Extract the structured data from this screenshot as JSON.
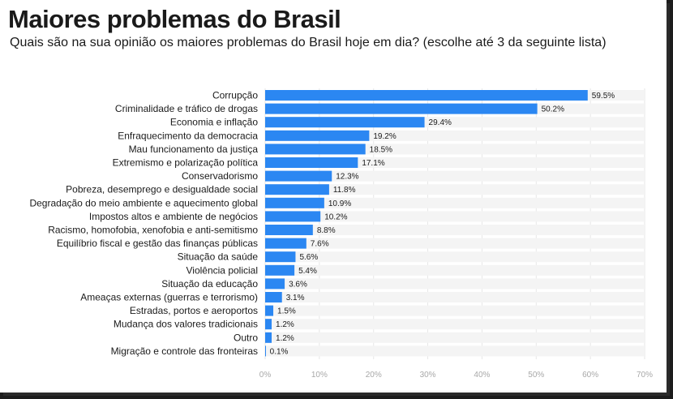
{
  "title": "Maiores problemas do Brasil",
  "subtitle": "Quais são na sua opinião os maiores problemas do Brasil hoje em dia? (escolhe até 3 da seguinte lista)",
  "colors": {
    "bar": "#2b87f2",
    "track": "#f4f4f4",
    "grid": "#e6e6e6",
    "axis_text": "#a8a8a8"
  },
  "chart_data": {
    "type": "bar",
    "orientation": "horizontal",
    "title": "Maiores problemas do Brasil",
    "subtitle": "Quais são na sua opinião os maiores problemas do Brasil hoje em dia? (escolhe até 3 da seguinte lista)",
    "xlabel": "",
    "ylabel": "",
    "xlim": [
      0,
      70
    ],
    "value_suffix": "%",
    "grid": true,
    "categories": [
      "Corrupção",
      "Criminalidade e tráfico de drogas",
      "Economia e inflação",
      "Enfraquecimento da democracia",
      "Mau funcionamento da justiça",
      "Extremismo e polarização política",
      "Conservadorismo",
      "Pobreza, desemprego e desigualdade social",
      "Degradação do meio ambiente e aquecimento global",
      "Impostos altos e ambiente de negócios",
      "Racismo, homofobia, xenofobia e anti-semitismo",
      "Equilíbrio fiscal e gestão das finanças públicas",
      "Situação da saúde",
      "Violência policial",
      "Situação da educação",
      "Ameaças externas (guerras e terrorismo)",
      "Estradas, portos e aeroportos",
      "Mudança dos valores tradicionais",
      "Outro",
      "Migração e controle das fronteiras"
    ],
    "values": [
      59.5,
      50.2,
      29.4,
      19.2,
      18.5,
      17.1,
      12.3,
      11.8,
      10.9,
      10.2,
      8.8,
      7.6,
      5.6,
      5.4,
      3.6,
      3.1,
      1.5,
      1.2,
      1.2,
      0.1
    ],
    "value_labels": [
      "59.5%",
      "50.2%",
      "29.4%",
      "19.2%",
      "18.5%",
      "17.1%",
      "12.3%",
      "11.8%",
      "10.9%",
      "10.2%",
      "8.8%",
      "7.6%",
      "5.6%",
      "5.4%",
      "3.6%",
      "3.1%",
      "1.5%",
      "1.2%",
      "1.2%",
      "0.1%"
    ],
    "ticks": [
      0,
      10,
      20,
      30,
      40,
      50,
      60,
      70
    ],
    "tick_labels": [
      "0%",
      "10%",
      "20%",
      "30%",
      "40%",
      "50%",
      "60%",
      "70%"
    ]
  }
}
